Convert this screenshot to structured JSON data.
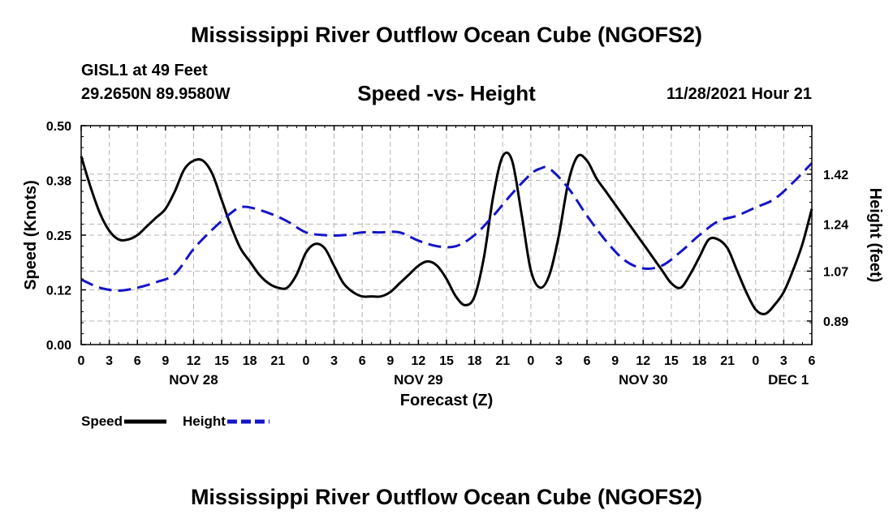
{
  "header": {
    "title": "Mississippi River Outflow Ocean Cube (NGOFS2)",
    "station": "GISL1 at 49 Feet",
    "coords": "29.2650N  89.9580W",
    "subtitle": "Speed -vs- Height",
    "datetime": "11/28/2021 Hour 21"
  },
  "footer": {
    "title": "Mississippi River Outflow Ocean Cube (NGOFS2)"
  },
  "colors": {
    "speed": "#000000",
    "height": "#1414c8",
    "grid": "#b4b4b4"
  },
  "chart_data": {
    "type": "line",
    "xlabel": "Forecast (Z)",
    "ylabel_left": "Speed (Knots)",
    "ylabel_right": "Height (feet)",
    "x_range": [
      0,
      78
    ],
    "x_ticks": [
      0,
      3,
      6,
      9,
      12,
      15,
      18,
      21,
      24,
      27,
      30,
      33,
      36,
      39,
      42,
      45,
      48,
      51,
      54,
      57,
      60,
      63,
      66,
      69,
      72,
      75,
      78
    ],
    "x_tick_labels": [
      "0",
      "3",
      "6",
      "9",
      "12",
      "15",
      "18",
      "21",
      "0",
      "3",
      "6",
      "9",
      "12",
      "15",
      "18",
      "21",
      "0",
      "3",
      "6",
      "9",
      "12",
      "15",
      "18",
      "21",
      "0",
      "3",
      "6"
    ],
    "x_day_labels": [
      {
        "x": 12,
        "label": "NOV 28"
      },
      {
        "x": 36,
        "label": "NOV 29"
      },
      {
        "x": 60,
        "label": "NOV 30"
      },
      {
        "x": 75.5,
        "label": "DEC 1"
      }
    ],
    "y_left_range": [
      0,
      0.5
    ],
    "y_left_ticks": [
      0,
      0.125,
      0.25,
      0.375,
      0.5
    ],
    "y_left_tick_labels": [
      "0.00",
      "0.12",
      "0.25",
      "0.38",
      "0.50"
    ],
    "y_right_range": [
      0.805,
      1.595
    ],
    "y_right_ticks": [
      0.89,
      1.07,
      1.24,
      1.42
    ],
    "y_right_tick_labels": [
      "0.89",
      "1.07",
      "1.24",
      "1.42"
    ],
    "grid": true,
    "legend": [
      {
        "name": "Speed",
        "color_key": "speed",
        "dashed": false
      },
      {
        "name": "Height",
        "color_key": "height",
        "dashed": true
      }
    ],
    "series": [
      {
        "name": "Speed",
        "axis": "left",
        "x": [
          0,
          1,
          2,
          3,
          4,
          5,
          6,
          7,
          8,
          9,
          10,
          11,
          12,
          13,
          14,
          15,
          16,
          17,
          18,
          19,
          20,
          21,
          22,
          23,
          24,
          25,
          26,
          27,
          28,
          29,
          30,
          31,
          32,
          33,
          34,
          35,
          36,
          37,
          38,
          39,
          40,
          41,
          42,
          43,
          44,
          45,
          46,
          47,
          48,
          49,
          50,
          51,
          52,
          53,
          54,
          55,
          56,
          57,
          58,
          59,
          60,
          61,
          62,
          63,
          64,
          65,
          66,
          67,
          68,
          69,
          70,
          71,
          72,
          73,
          74,
          75,
          76,
          77,
          78
        ],
        "values": [
          0.43,
          0.36,
          0.3,
          0.26,
          0.24,
          0.24,
          0.25,
          0.27,
          0.29,
          0.31,
          0.35,
          0.4,
          0.42,
          0.42,
          0.39,
          0.33,
          0.27,
          0.22,
          0.19,
          0.16,
          0.14,
          0.13,
          0.13,
          0.16,
          0.21,
          0.23,
          0.22,
          0.18,
          0.14,
          0.12,
          0.11,
          0.11,
          0.11,
          0.12,
          0.14,
          0.16,
          0.18,
          0.19,
          0.18,
          0.15,
          0.11,
          0.09,
          0.11,
          0.2,
          0.34,
          0.43,
          0.42,
          0.3,
          0.17,
          0.13,
          0.16,
          0.25,
          0.37,
          0.43,
          0.42,
          0.38,
          0.35,
          0.32,
          0.29,
          0.26,
          0.23,
          0.2,
          0.17,
          0.14,
          0.13,
          0.16,
          0.2,
          0.24,
          0.24,
          0.22,
          0.17,
          0.12,
          0.08,
          0.07,
          0.09,
          0.12,
          0.17,
          0.23,
          0.31
        ]
      },
      {
        "name": "Height",
        "axis": "right",
        "x": [
          0,
          2,
          4,
          6,
          8,
          10,
          12,
          14,
          16,
          17,
          18,
          20,
          22,
          24,
          26,
          28,
          30,
          32,
          34,
          36,
          38,
          40,
          42,
          44,
          46,
          48,
          49,
          50,
          52,
          54,
          56,
          58,
          60,
          62,
          64,
          66,
          68,
          70,
          72,
          74,
          76,
          78
        ],
        "values": [
          1.04,
          1.01,
          1.0,
          1.01,
          1.03,
          1.06,
          1.15,
          1.22,
          1.28,
          1.3,
          1.3,
          1.28,
          1.25,
          1.21,
          1.2,
          1.2,
          1.21,
          1.21,
          1.21,
          1.18,
          1.16,
          1.16,
          1.2,
          1.27,
          1.35,
          1.42,
          1.44,
          1.44,
          1.37,
          1.27,
          1.18,
          1.11,
          1.08,
          1.09,
          1.14,
          1.2,
          1.25,
          1.27,
          1.3,
          1.33,
          1.39,
          1.46
        ]
      }
    ]
  }
}
